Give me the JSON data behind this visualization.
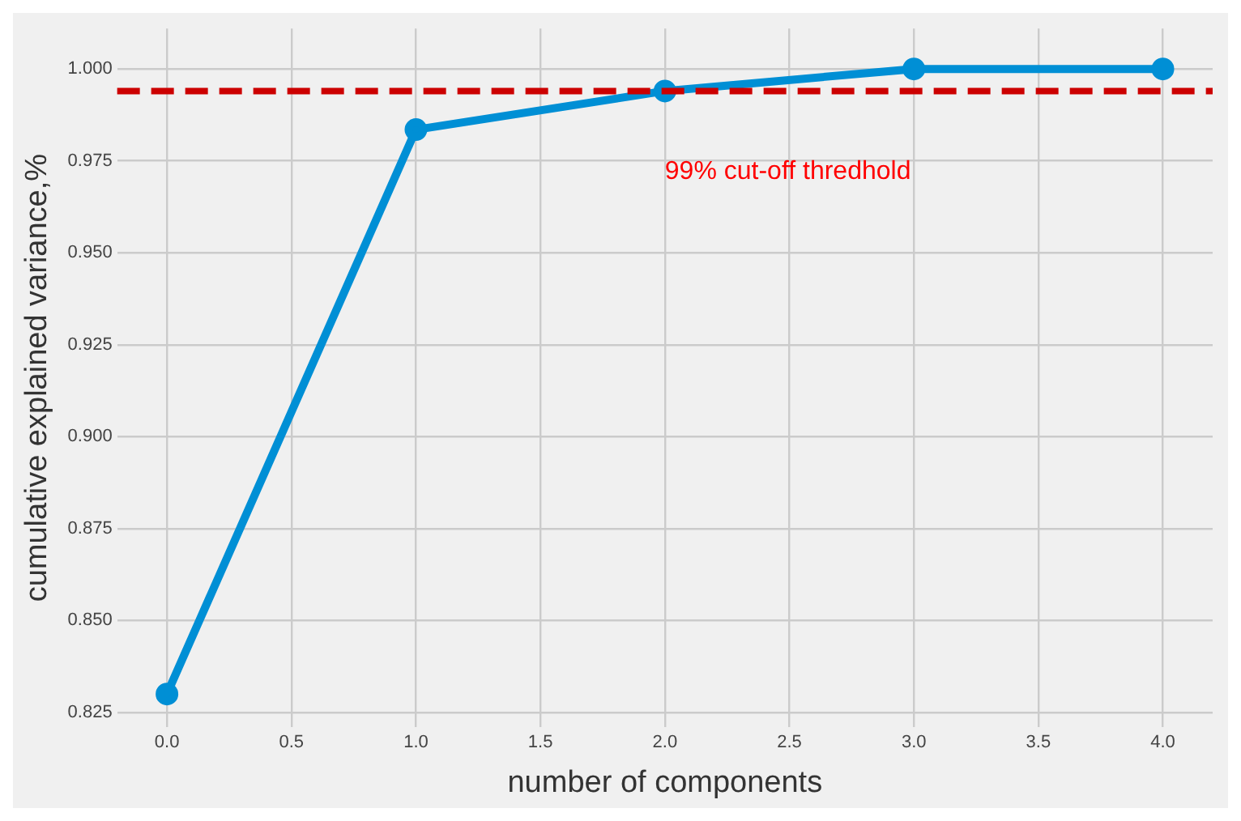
{
  "chart_data": {
    "type": "line",
    "xlabel": "number of components",
    "ylabel": "cumulative explained variance,%",
    "x": [
      0,
      1,
      2,
      3,
      4
    ],
    "series": [
      {
        "color": "#008fd5",
        "values": [
          0.83,
          0.9835,
          0.994,
          1.0,
          1.0
        ]
      }
    ],
    "xlim": [
      -0.2,
      4.2
    ],
    "xticks": [
      {
        "value": 0,
        "label": "0.0"
      },
      {
        "value": 0.5,
        "label": "0.5"
      },
      {
        "value": 1,
        "label": "1.0"
      },
      {
        "value": 1.5,
        "label": "1.5"
      },
      {
        "value": 2,
        "label": "2.0"
      },
      {
        "value": 2.5,
        "label": "2.5"
      },
      {
        "value": 3,
        "label": "3.0"
      },
      {
        "value": 3.5,
        "label": "3.5"
      },
      {
        "value": 4,
        "label": "4.0"
      }
    ],
    "ylim": [
      0.821,
      1.011
    ],
    "yticks": [
      {
        "value": 0.825,
        "label": "0.825"
      },
      {
        "value": 0.85,
        "label": "0.850"
      },
      {
        "value": 0.875,
        "label": "0.875"
      },
      {
        "value": 0.9,
        "label": "0.900"
      },
      {
        "value": 0.925,
        "label": "0.925"
      },
      {
        "value": 0.95,
        "label": "0.950"
      },
      {
        "value": 0.975,
        "label": "0.975"
      },
      {
        "value": 1.0,
        "label": "1.000"
      }
    ],
    "ref_lines": [
      {
        "axis": "y",
        "value": 0.994,
        "color": "#cc0000",
        "line_style": "dashed",
        "label": "99% cut-off thredhold"
      }
    ],
    "grid": true,
    "legend": false,
    "marker": "circle",
    "line_style": "solid"
  }
}
